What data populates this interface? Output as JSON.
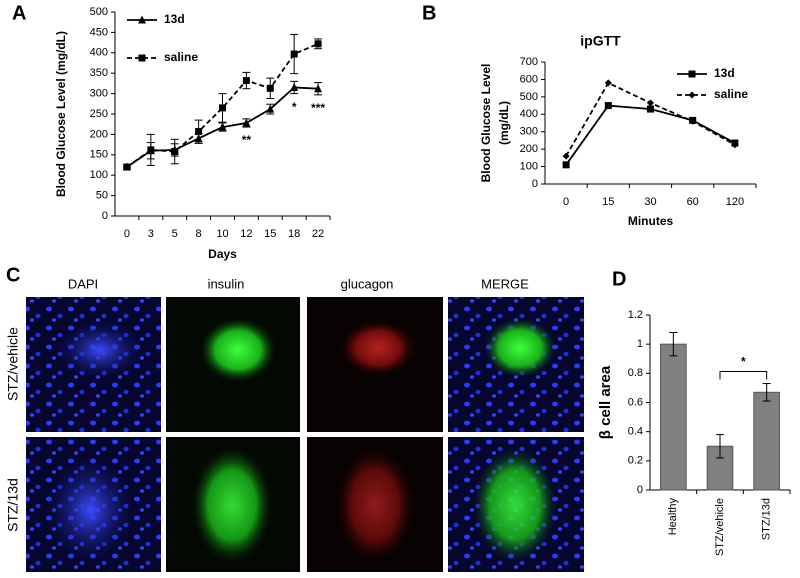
{
  "panels": [
    "A",
    "B",
    "C",
    "D"
  ],
  "microscopy": {
    "columns": [
      "DAPI",
      "insulin",
      "glucagon",
      "MERGE"
    ],
    "rows": [
      "STZ/vehicle",
      "STZ/13d"
    ]
  },
  "chart_data": [
    {
      "type": "line",
      "xlabel": "Days",
      "ylabel": "Blood Glucose Level (mg/dL)",
      "categories": [
        "0",
        "3",
        "5",
        "8",
        "10",
        "12",
        "15",
        "18",
        "22"
      ],
      "series": [
        {
          "name": "13d",
          "color": "#000000",
          "marker": "triangle",
          "dashed": false,
          "values": [
            120,
            160,
            162,
            190,
            218,
            228,
            262,
            315,
            312
          ],
          "errors": [
            5,
            20,
            15,
            12,
            10,
            10,
            12,
            15,
            15
          ]
        },
        {
          "name": "saline",
          "color": "#000000",
          "marker": "square",
          "dashed": true,
          "values": [
            120,
            162,
            158,
            207,
            265,
            332,
            313,
            397,
            422
          ],
          "errors": [
            0,
            38,
            30,
            28,
            35,
            20,
            25,
            48,
            12
          ]
        }
      ],
      "ylim": [
        0,
        500
      ],
      "yticks": [
        0,
        50,
        100,
        150,
        200,
        250,
        300,
        350,
        400,
        450,
        500
      ],
      "legend": "upper left",
      "annotations": [
        {
          "text": "**",
          "x": "12"
        },
        {
          "text": "*",
          "x": "18"
        },
        {
          "text": "***",
          "x": "22"
        }
      ]
    },
    {
      "type": "line",
      "title": "ipGTT",
      "xlabel": "Minutes",
      "ylabel": [
        "Blood Glucose Level",
        "(mg/dL)"
      ],
      "categories": [
        "0",
        "15",
        "30",
        "60",
        "120"
      ],
      "series": [
        {
          "name": "13d",
          "color": "#000000",
          "marker": "square",
          "dashed": false,
          "values": [
            110,
            450,
            430,
            365,
            235
          ]
        },
        {
          "name": "saline",
          "color": "#000000",
          "marker": "diamond",
          "dashed": true,
          "values": [
            160,
            580,
            465,
            360,
            225
          ]
        }
      ],
      "ylim": [
        0,
        700
      ],
      "yticks": [
        0,
        100,
        200,
        300,
        400,
        500,
        600,
        700
      ],
      "legend": "upper right"
    },
    {
      "type": "bar",
      "ylabel": "β cell area",
      "categories": [
        "Healthy",
        "STZ/vehicle",
        "STZ/13d"
      ],
      "values": [
        1,
        0.3,
        0.67
      ],
      "errors": [
        0.08,
        0.08,
        0.06
      ],
      "color": "#808080",
      "ylim": [
        0,
        1.2
      ],
      "yticks": [
        0,
        0.2,
        0.4,
        0.6,
        0.8,
        1,
        1.2
      ],
      "annotations": [
        {
          "text": "*",
          "between": [
            "STZ/vehicle",
            "STZ/13d"
          ]
        }
      ]
    }
  ]
}
